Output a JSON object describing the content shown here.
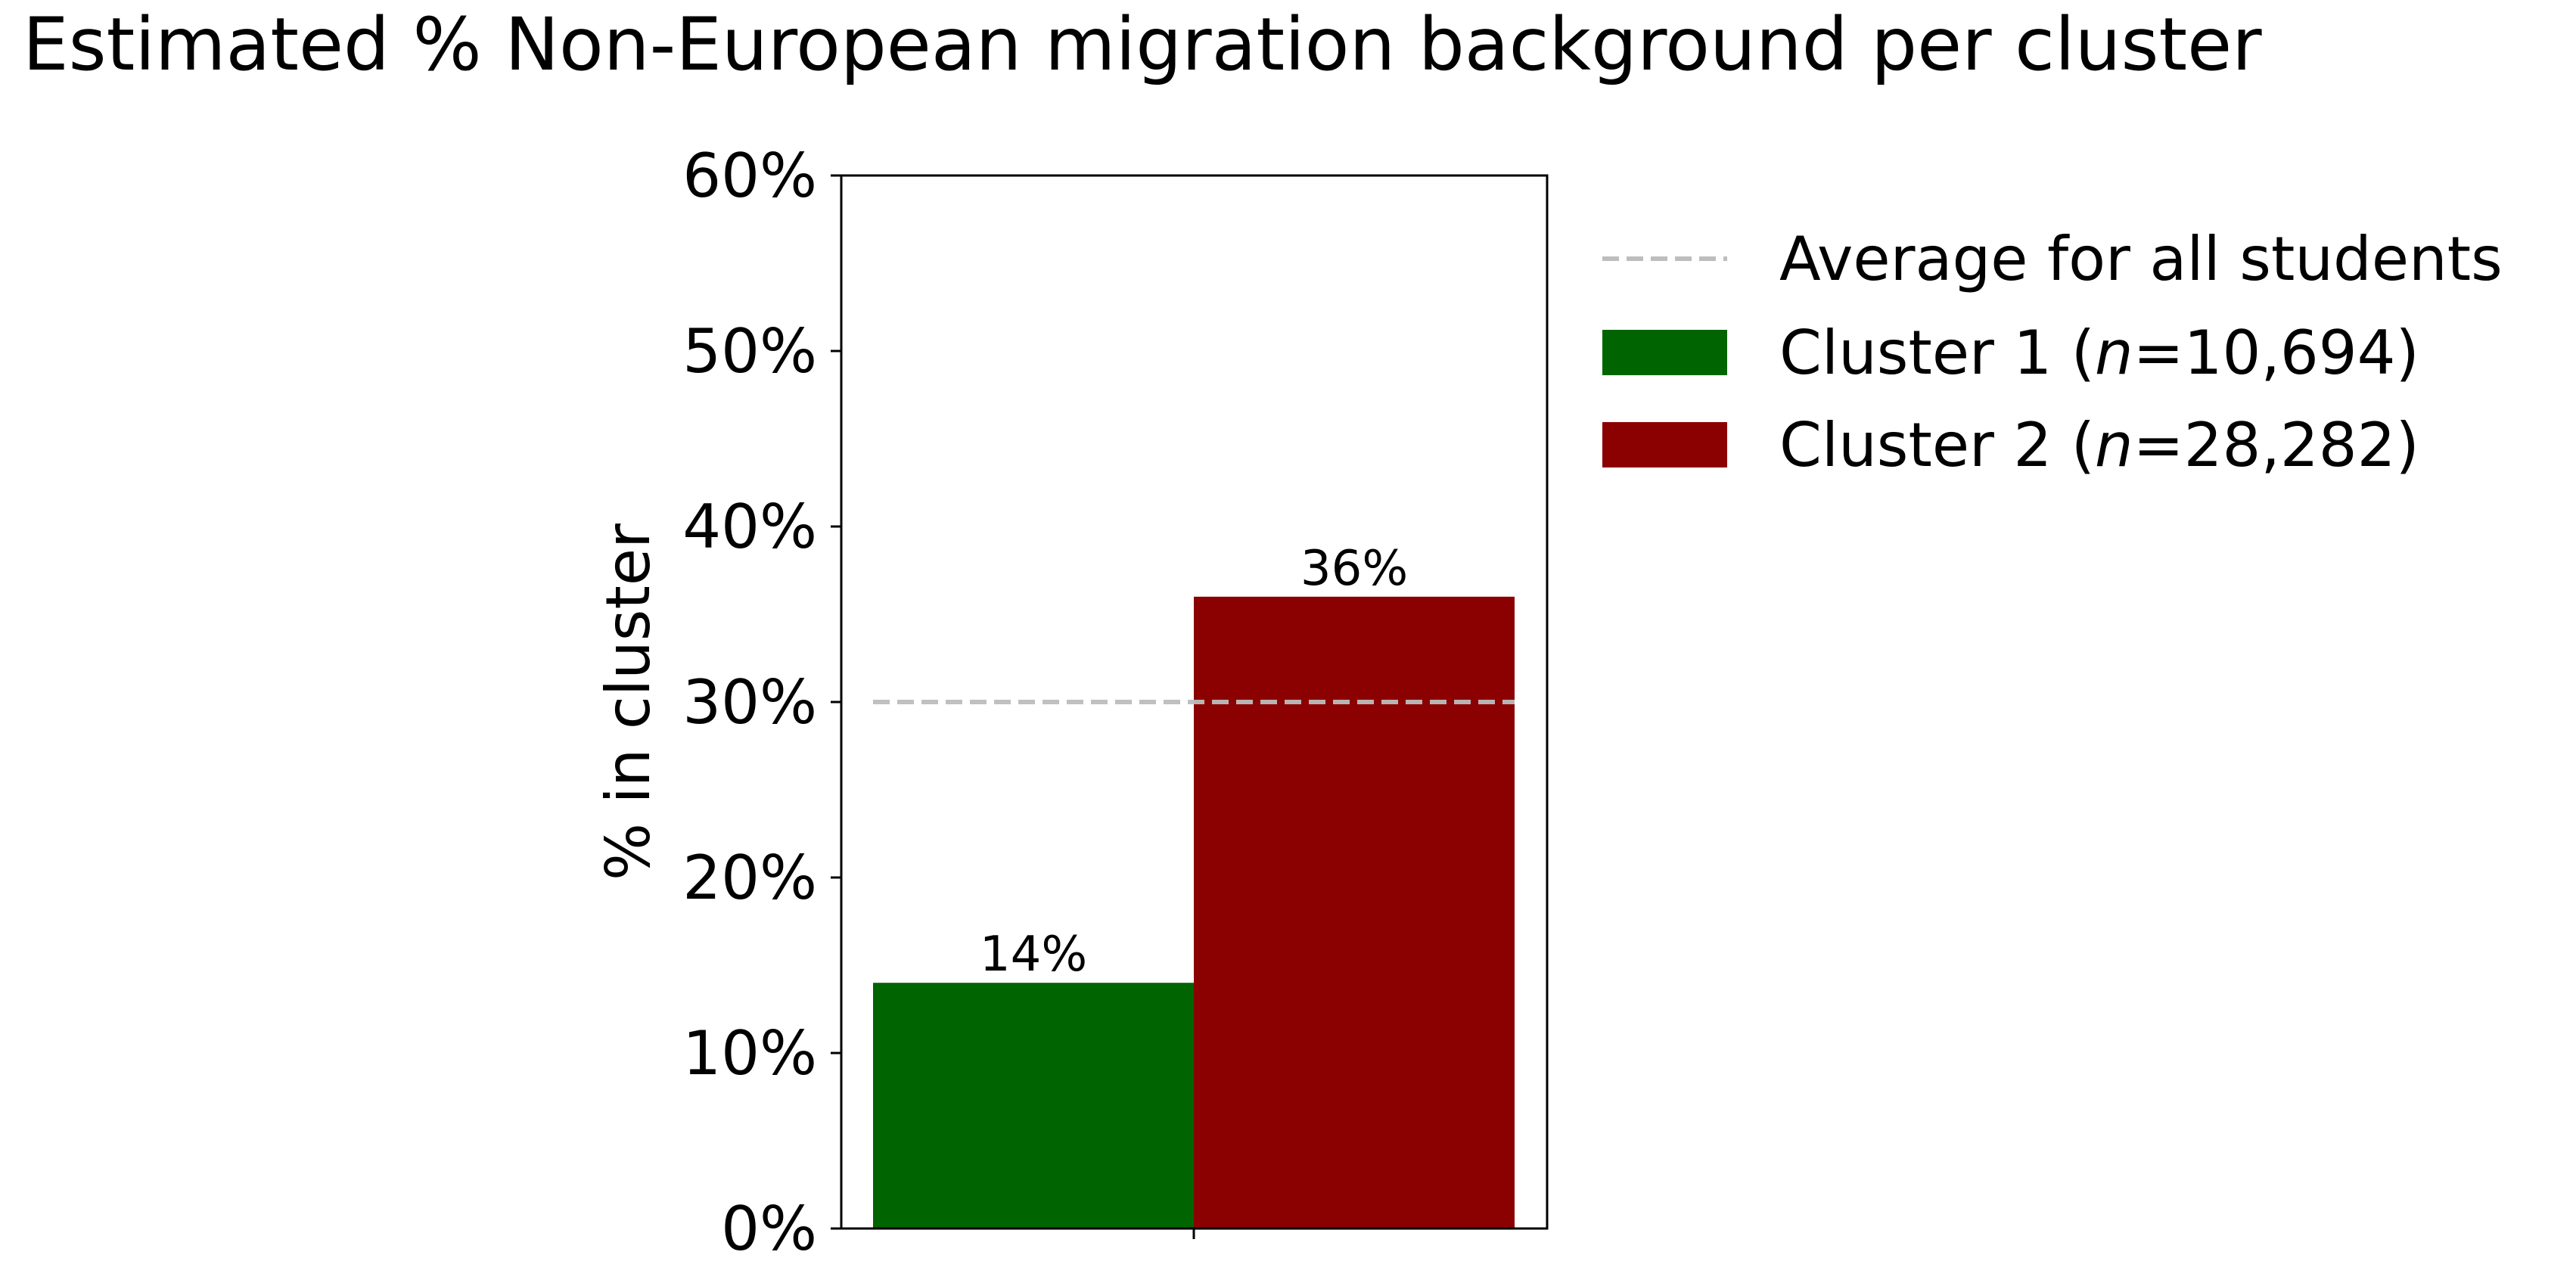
{
  "chart_data": {
    "type": "bar",
    "title": "Estimated % Non-European migration background per cluster",
    "xlabel": "",
    "ylabel": "% in cluster",
    "ylim": [
      0,
      60
    ],
    "yticks": [
      "0%",
      "10%",
      "20%",
      "30%",
      "40%",
      "50%",
      "60%"
    ],
    "grid": false,
    "legend_position": "outside right, top",
    "reference_line": {
      "label": "Average for all students",
      "value": 30,
      "style": "dashed",
      "color": "#bdbdbd"
    },
    "series": [
      {
        "name": "Cluster 1 (n=10,694)",
        "legend_prefix": "Cluster 1 (",
        "legend_n": "n",
        "legend_suffix": "=10,694)",
        "value": 14,
        "value_label": "14%",
        "color": "#006400"
      },
      {
        "name": "Cluster 2 (n=28,282)",
        "legend_prefix": "Cluster 2 (",
        "legend_n": "n",
        "legend_suffix": "=28,282)",
        "value": 36,
        "value_label": "36%",
        "color": "#8b0000"
      }
    ]
  }
}
